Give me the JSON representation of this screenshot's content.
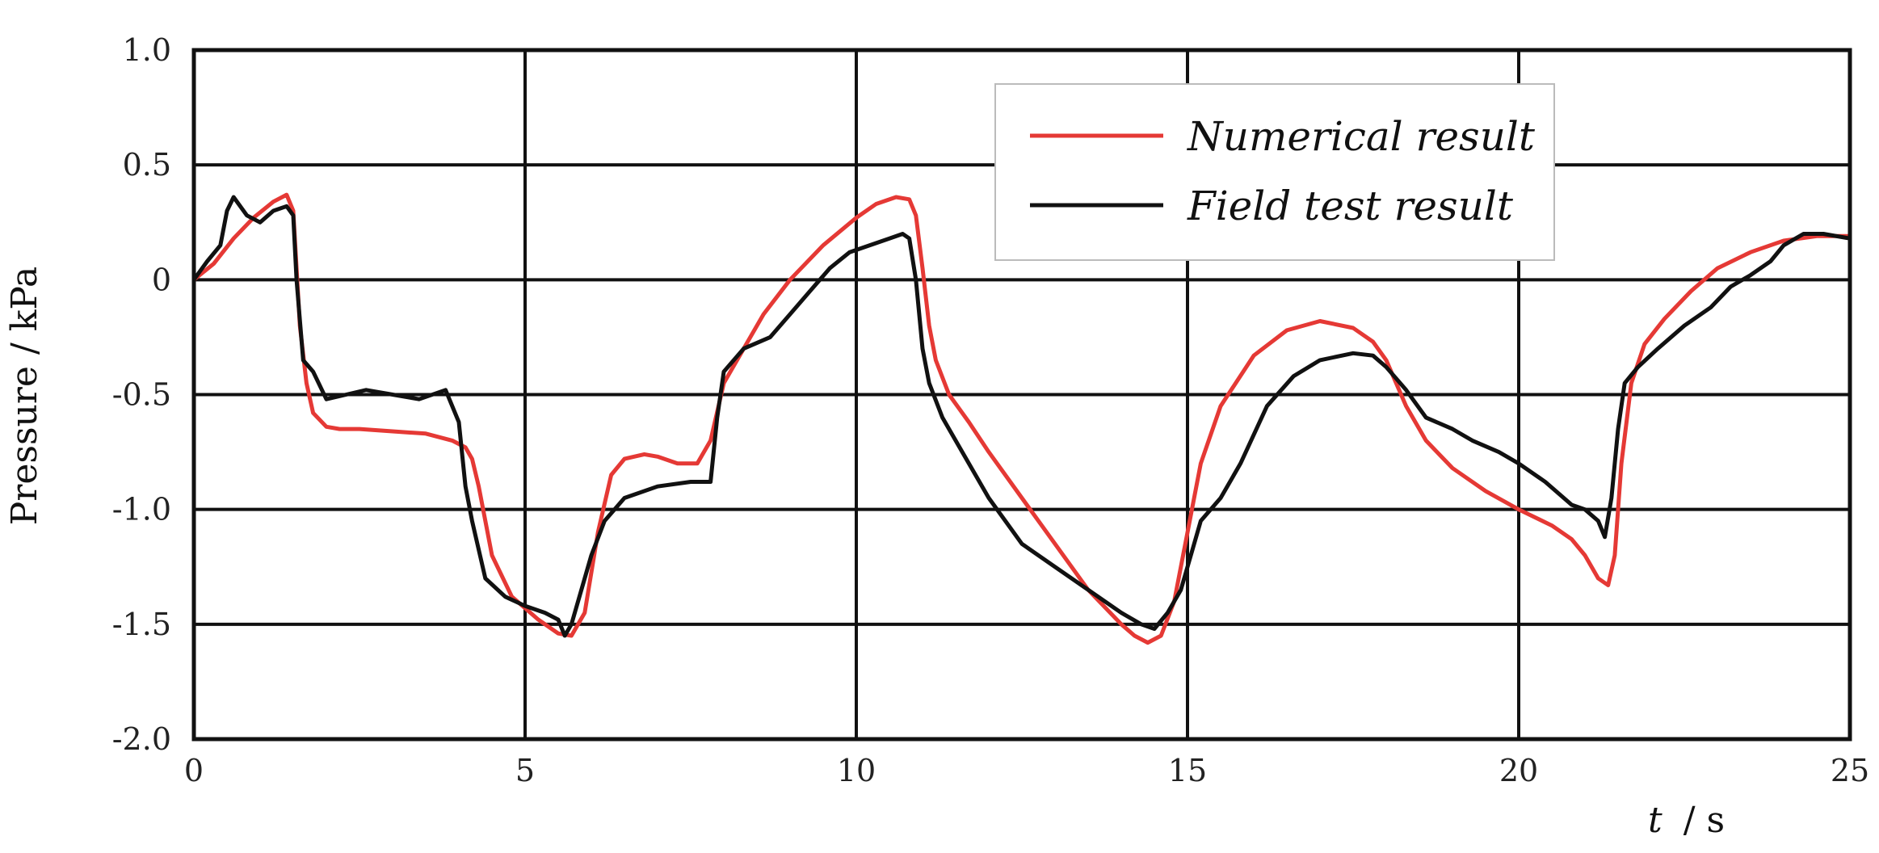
{
  "chart_data": {
    "type": "line",
    "xlabel_var": "t",
    "xlabel_unit": "/ s",
    "ylabel": "Pressure / kPa",
    "xlim": [
      0,
      25
    ],
    "ylim": [
      -2.0,
      1.0
    ],
    "grid": true,
    "legend_position": "top-right",
    "x_ticks": [
      0,
      5,
      10,
      15,
      20,
      25
    ],
    "x_tick_labels": [
      "0",
      "5",
      "10",
      "15",
      "20",
      "25"
    ],
    "y_ticks": [
      1.0,
      0.5,
      0,
      -0.5,
      -1.0,
      -1.5,
      -2.0
    ],
    "y_tick_labels": [
      "1.0",
      "0.5",
      "0",
      "-0.5",
      "-1.0",
      "-1.5",
      "-2.0"
    ],
    "series": [
      {
        "name": "Numerical result",
        "color": "#e53935",
        "x": [
          0,
          0.3,
          0.6,
          0.9,
          1.2,
          1.4,
          1.5,
          1.55,
          1.6,
          1.7,
          1.8,
          2.0,
          2.2,
          2.5,
          3.0,
          3.5,
          3.9,
          4.1,
          4.2,
          4.3,
          4.5,
          4.8,
          5.2,
          5.5,
          5.7,
          5.9,
          6.1,
          6.3,
          6.5,
          6.8,
          7.0,
          7.3,
          7.6,
          7.8,
          8.0,
          8.3,
          8.6,
          9.0,
          9.5,
          10.0,
          10.3,
          10.6,
          10.8,
          10.9,
          11.0,
          11.1,
          11.2,
          11.4,
          11.7,
          12.0,
          12.5,
          13.0,
          13.5,
          14.0,
          14.2,
          14.4,
          14.6,
          14.8,
          15.0,
          15.2,
          15.5,
          16.0,
          16.5,
          17.0,
          17.5,
          17.8,
          18.0,
          18.3,
          18.6,
          19.0,
          19.5,
          20.0,
          20.5,
          20.8,
          21.0,
          21.2,
          21.35,
          21.45,
          21.55,
          21.7,
          21.9,
          22.2,
          22.6,
          23.0,
          23.5,
          24.0,
          24.5,
          25.0
        ],
        "y": [
          0.0,
          0.07,
          0.18,
          0.27,
          0.34,
          0.37,
          0.3,
          0.05,
          -0.2,
          -0.45,
          -0.58,
          -0.64,
          -0.65,
          -0.65,
          -0.66,
          -0.67,
          -0.7,
          -0.73,
          -0.78,
          -0.9,
          -1.2,
          -1.38,
          -1.48,
          -1.54,
          -1.55,
          -1.45,
          -1.1,
          -0.85,
          -0.78,
          -0.76,
          -0.77,
          -0.8,
          -0.8,
          -0.7,
          -0.45,
          -0.3,
          -0.15,
          0.0,
          0.15,
          0.27,
          0.33,
          0.36,
          0.35,
          0.28,
          0.05,
          -0.2,
          -0.35,
          -0.5,
          -0.62,
          -0.75,
          -0.95,
          -1.15,
          -1.35,
          -1.5,
          -1.55,
          -1.58,
          -1.55,
          -1.4,
          -1.1,
          -0.8,
          -0.55,
          -0.33,
          -0.22,
          -0.18,
          -0.21,
          -0.27,
          -0.35,
          -0.55,
          -0.7,
          -0.82,
          -0.92,
          -1.0,
          -1.07,
          -1.13,
          -1.2,
          -1.3,
          -1.33,
          -1.2,
          -0.8,
          -0.45,
          -0.28,
          -0.17,
          -0.05,
          0.05,
          0.12,
          0.17,
          0.19,
          0.19
        ]
      },
      {
        "name": "Field test result",
        "color": "#111111",
        "x": [
          0,
          0.2,
          0.4,
          0.5,
          0.6,
          0.8,
          1.0,
          1.2,
          1.4,
          1.5,
          1.55,
          1.65,
          1.8,
          2.0,
          2.3,
          2.6,
          3.0,
          3.4,
          3.8,
          4.0,
          4.1,
          4.2,
          4.4,
          4.7,
          5.0,
          5.3,
          5.5,
          5.6,
          5.7,
          5.9,
          6.0,
          6.2,
          6.5,
          7.0,
          7.5,
          7.8,
          7.9,
          8.0,
          8.3,
          8.7,
          9.0,
          9.3,
          9.6,
          9.9,
          10.2,
          10.5,
          10.7,
          10.8,
          10.9,
          11.0,
          11.1,
          11.3,
          11.6,
          12.0,
          12.5,
          13.0,
          13.5,
          14.0,
          14.3,
          14.5,
          14.7,
          14.9,
          15.0,
          15.2,
          15.5,
          15.8,
          16.2,
          16.6,
          17.0,
          17.5,
          17.8,
          18.0,
          18.3,
          18.6,
          19.0,
          19.3,
          19.7,
          20.0,
          20.4,
          20.8,
          21.0,
          21.2,
          21.3,
          21.4,
          21.5,
          21.6,
          21.8,
          22.1,
          22.5,
          22.9,
          23.2,
          23.5,
          23.8,
          24.0,
          24.3,
          24.6,
          25.0
        ],
        "y": [
          0.0,
          0.08,
          0.15,
          0.3,
          0.36,
          0.28,
          0.25,
          0.3,
          0.32,
          0.28,
          0.0,
          -0.35,
          -0.4,
          -0.52,
          -0.5,
          -0.48,
          -0.5,
          -0.52,
          -0.48,
          -0.62,
          -0.9,
          -1.05,
          -1.3,
          -1.38,
          -1.42,
          -1.45,
          -1.48,
          -1.55,
          -1.5,
          -1.3,
          -1.2,
          -1.05,
          -0.95,
          -0.9,
          -0.88,
          -0.88,
          -0.6,
          -0.4,
          -0.3,
          -0.25,
          -0.15,
          -0.05,
          0.05,
          0.12,
          0.15,
          0.18,
          0.2,
          0.18,
          0.0,
          -0.3,
          -0.45,
          -0.6,
          -0.75,
          -0.95,
          -1.15,
          -1.25,
          -1.35,
          -1.45,
          -1.5,
          -1.52,
          -1.45,
          -1.35,
          -1.25,
          -1.05,
          -0.95,
          -0.8,
          -0.55,
          -0.42,
          -0.35,
          -0.32,
          -0.33,
          -0.38,
          -0.48,
          -0.6,
          -0.65,
          -0.7,
          -0.75,
          -0.8,
          -0.88,
          -0.98,
          -1.0,
          -1.05,
          -1.12,
          -0.95,
          -0.65,
          -0.45,
          -0.38,
          -0.3,
          -0.2,
          -0.12,
          -0.03,
          0.02,
          0.08,
          0.15,
          0.2,
          0.2,
          0.18
        ]
      }
    ]
  }
}
